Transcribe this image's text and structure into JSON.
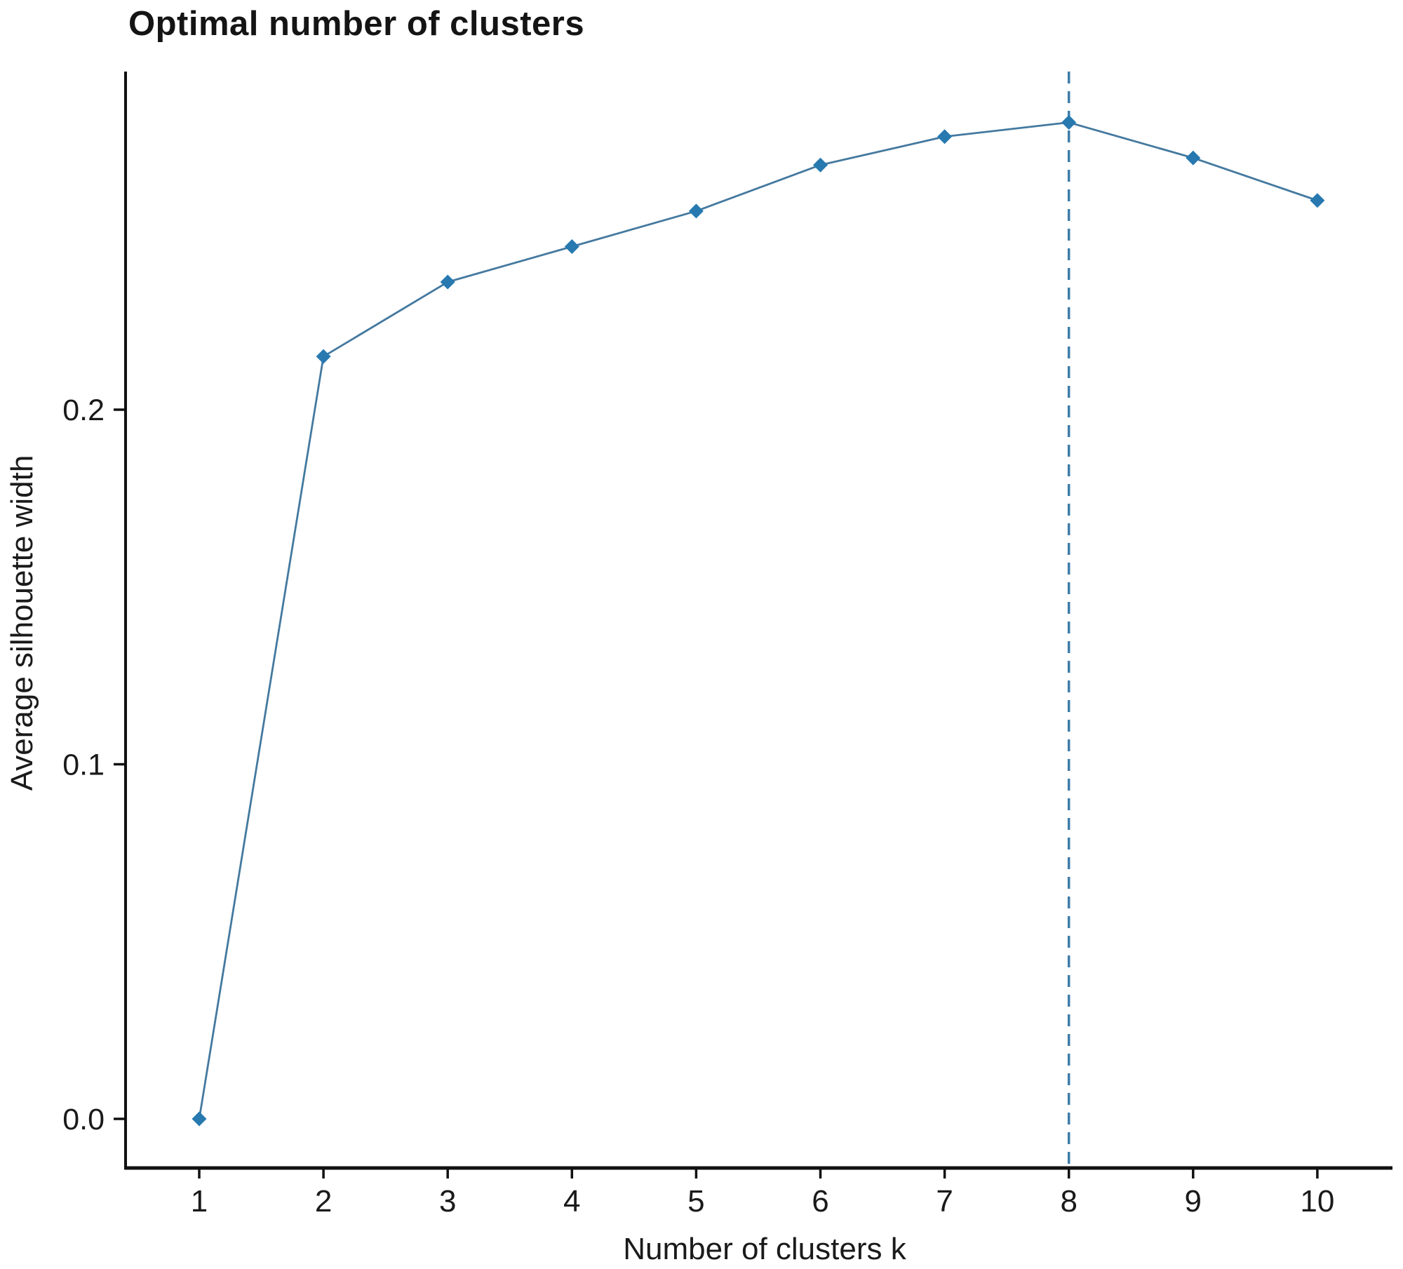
{
  "title": "Optimal number of clusters",
  "chart_data": {
    "type": "line",
    "title": "Optimal number of clusters",
    "xlabel": "Number of clusters k",
    "ylabel": "Average silhouette width",
    "x": [
      1,
      2,
      3,
      4,
      5,
      6,
      7,
      8,
      9,
      10
    ],
    "values": [
      0.0,
      0.215,
      0.236,
      0.246,
      0.256,
      0.269,
      0.277,
      0.281,
      0.271,
      0.259
    ],
    "xtick_labels": [
      "1",
      "2",
      "3",
      "4",
      "5",
      "6",
      "7",
      "8",
      "9",
      "10"
    ],
    "yticks": [
      0.0,
      0.1,
      0.2
    ],
    "ytick_labels": [
      "0.0",
      "0.1",
      "0.2"
    ],
    "ylim": [
      -0.014,
      0.297
    ],
    "xlim": [
      0.41,
      10.61
    ],
    "grid": false,
    "legend": "none",
    "marker": "diamond",
    "optimal_k": 8,
    "vline_x": 8,
    "vline_style": "dashed",
    "line_color": "#44799f",
    "marker_color": "#2779b0",
    "vline_color": "#3d7ca8",
    "axis_color": "#111111",
    "text_color": "#1a1a1a",
    "background_color": "#ffffff"
  }
}
